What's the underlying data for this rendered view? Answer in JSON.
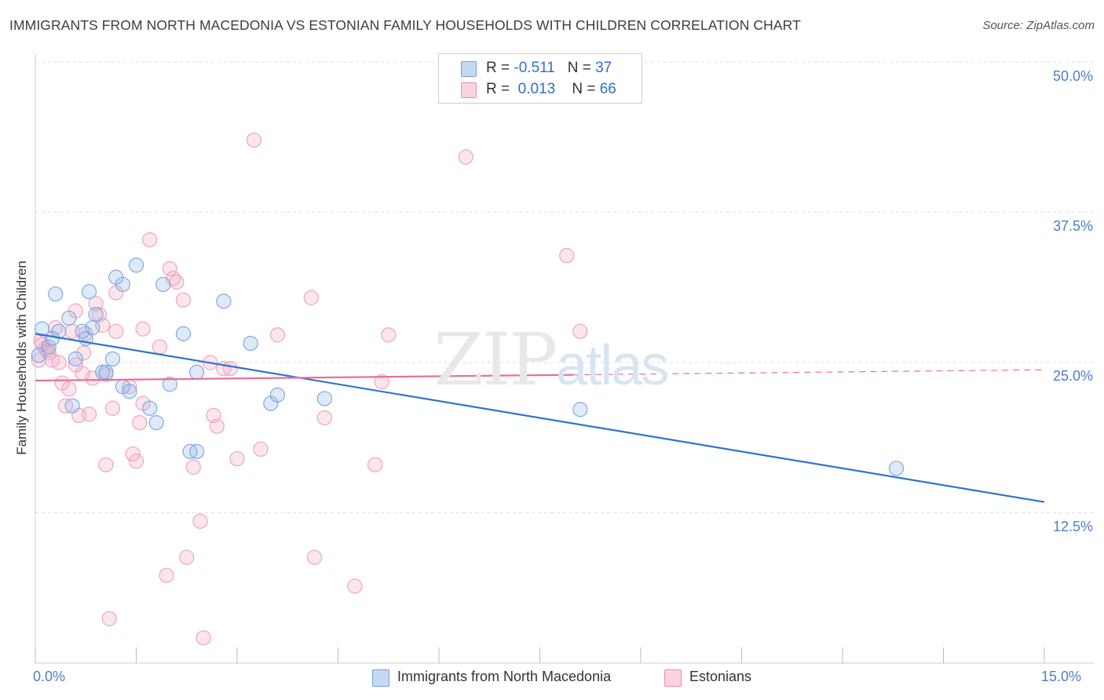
{
  "header": {
    "title": "IMMIGRANTS FROM NORTH MACEDONIA VS ESTONIAN FAMILY HOUSEHOLDS WITH CHILDREN CORRELATION CHART",
    "source": "Source: ZipAtlas.com"
  },
  "legend": {
    "row1": {
      "r_label": "R =",
      "r_value": "-0.511",
      "n_label": "N =",
      "n_value": "37"
    },
    "row2": {
      "r_label": "R =",
      "r_value": "0.013",
      "n_label": "N =",
      "n_value": "66"
    }
  },
  "watermark": {
    "zip": "ZIP",
    "atlas": "atlas"
  },
  "colors": {
    "blue": "#6f9fe0",
    "pink": "#f08aaa",
    "blue_line": "#2f74cf",
    "pink_line": "#e8709a"
  },
  "chart_data": {
    "type": "scatter",
    "title": "IMMIGRANTS FROM NORTH MACEDONIA VS ESTONIAN FAMILY HOUSEHOLDS WITH CHILDREN CORRELATION CHART",
    "xlabel": "",
    "ylabel": "Family Households with Children",
    "xlim": [
      0,
      15
    ],
    "ylim": [
      0,
      50
    ],
    "x_ticks": [
      "0.0%",
      "15.0%"
    ],
    "y_ticks": [
      "12.5%",
      "25.0%",
      "37.5%",
      "50.0%"
    ],
    "y_tick_values": [
      12.5,
      25.0,
      37.5,
      50.0
    ],
    "grid": true,
    "legend_position": "top-center",
    "series": [
      {
        "name": "Immigrants from North Macedonia",
        "color": "#6f9fe0",
        "trend": {
          "x": [
            0,
            15
          ],
          "y": [
            27.4,
            13.4
          ]
        },
        "points": [
          [
            0.05,
            25.6
          ],
          [
            0.1,
            27.8
          ],
          [
            0.2,
            26.3
          ],
          [
            0.25,
            27.0
          ],
          [
            0.3,
            30.7
          ],
          [
            0.35,
            27.6
          ],
          [
            0.5,
            28.7
          ],
          [
            0.55,
            21.4
          ],
          [
            0.6,
            25.3
          ],
          [
            0.7,
            27.6
          ],
          [
            0.75,
            27.0
          ],
          [
            0.8,
            30.9
          ],
          [
            0.85,
            27.9
          ],
          [
            0.9,
            29.0
          ],
          [
            1.0,
            24.2
          ],
          [
            1.05,
            24.2
          ],
          [
            1.15,
            25.3
          ],
          [
            1.2,
            32.1
          ],
          [
            1.3,
            31.5
          ],
          [
            1.3,
            23.0
          ],
          [
            1.4,
            22.6
          ],
          [
            1.5,
            33.1
          ],
          [
            1.7,
            21.2
          ],
          [
            1.8,
            20.0
          ],
          [
            1.9,
            31.5
          ],
          [
            2.0,
            23.2
          ],
          [
            2.2,
            27.4
          ],
          [
            2.3,
            17.6
          ],
          [
            2.4,
            24.2
          ],
          [
            2.4,
            17.6
          ],
          [
            2.8,
            30.1
          ],
          [
            3.2,
            26.6
          ],
          [
            3.5,
            21.6
          ],
          [
            3.6,
            22.3
          ],
          [
            4.3,
            22.0
          ],
          [
            8.1,
            21.1
          ],
          [
            12.8,
            16.2
          ]
        ]
      },
      {
        "name": "Estonians",
        "color": "#f08aaa",
        "trend": {
          "x": [
            0,
            15
          ],
          "y": [
            23.5,
            24.4
          ]
        },
        "trend_solid_to": 8.0,
        "points": [
          [
            0.05,
            25.2
          ],
          [
            0.1,
            26.5
          ],
          [
            0.15,
            26.2
          ],
          [
            0.2,
            25.8
          ],
          [
            0.25,
            25.2
          ],
          [
            0.3,
            27.9
          ],
          [
            0.35,
            25.0
          ],
          [
            0.4,
            23.3
          ],
          [
            0.45,
            21.4
          ],
          [
            0.5,
            22.8
          ],
          [
            0.55,
            27.6
          ],
          [
            0.6,
            29.3
          ],
          [
            0.65,
            20.6
          ],
          [
            0.7,
            24.1
          ],
          [
            0.72,
            25.8
          ],
          [
            0.75,
            27.4
          ],
          [
            0.8,
            20.7
          ],
          [
            0.85,
            23.7
          ],
          [
            0.9,
            29.9
          ],
          [
            0.95,
            29.0
          ],
          [
            1.0,
            28.1
          ],
          [
            1.05,
            24.0
          ],
          [
            1.05,
            16.5
          ],
          [
            1.1,
            3.7
          ],
          [
            1.15,
            21.2
          ],
          [
            1.2,
            27.6
          ],
          [
            1.2,
            30.8
          ],
          [
            1.4,
            23.0
          ],
          [
            1.45,
            17.4
          ],
          [
            1.5,
            16.8
          ],
          [
            1.55,
            20.0
          ],
          [
            1.6,
            21.6
          ],
          [
            1.6,
            27.8
          ],
          [
            1.7,
            35.2
          ],
          [
            1.85,
            26.3
          ],
          [
            1.95,
            7.3
          ],
          [
            2.0,
            32.8
          ],
          [
            2.05,
            32.0
          ],
          [
            2.1,
            31.7
          ],
          [
            2.2,
            30.2
          ],
          [
            2.25,
            8.8
          ],
          [
            2.35,
            16.3
          ],
          [
            2.45,
            11.8
          ],
          [
            2.5,
            2.1
          ],
          [
            2.6,
            25.0
          ],
          [
            2.65,
            20.6
          ],
          [
            2.7,
            19.7
          ],
          [
            2.8,
            24.5
          ],
          [
            2.9,
            24.5
          ],
          [
            3.0,
            17.0
          ],
          [
            3.25,
            43.5
          ],
          [
            3.35,
            17.8
          ],
          [
            3.6,
            27.3
          ],
          [
            4.1,
            30.4
          ],
          [
            4.15,
            8.8
          ],
          [
            4.3,
            20.4
          ],
          [
            4.75,
            6.4
          ],
          [
            5.05,
            16.5
          ],
          [
            5.15,
            23.4
          ],
          [
            5.25,
            27.3
          ],
          [
            6.4,
            42.1
          ],
          [
            7.9,
            33.9
          ],
          [
            8.1,
            27.6
          ],
          [
            0.08,
            26.8
          ],
          [
            0.18,
            26.0
          ],
          [
            0.6,
            24.8
          ]
        ]
      }
    ]
  },
  "bottom_legend": {
    "item1": "Immigrants from North Macedonia",
    "item2": "Estonians"
  }
}
